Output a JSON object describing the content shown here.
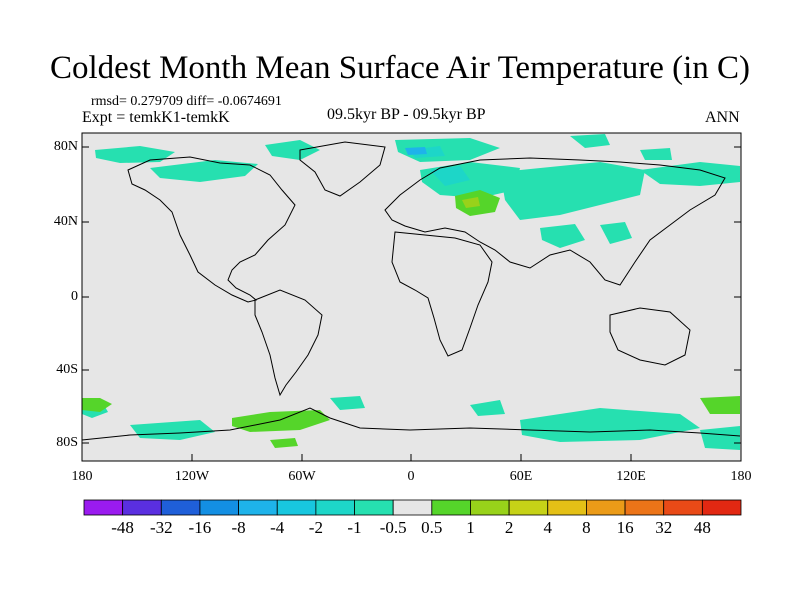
{
  "title": "Coldest Month Mean Surface Air Temperature (in C)",
  "stats": {
    "rmsd_line": "rmsd= 0.279709 diff= -0.0674691"
  },
  "experiment": "Expt = temkK1-temkK",
  "period": "09.5kyr BP - 09.5kyr BP",
  "season": "ANN",
  "axes": {
    "lat_labels": [
      "80N",
      "40N",
      "0",
      "40S",
      "80S"
    ],
    "lon_labels": [
      "180",
      "120W",
      "60W",
      "0",
      "60E",
      "120E",
      "180"
    ]
  },
  "colorbar": {
    "labels": [
      "-48",
      "-32",
      "-16",
      "-8",
      "-4",
      "-2",
      "-1",
      "-0.5",
      "0.5",
      "1",
      "2",
      "4",
      "8",
      "16",
      "32",
      "48"
    ],
    "colors": [
      "#9a1bef",
      "#5a2fe0",
      "#1f5fd9",
      "#138fe3",
      "#1eb3ea",
      "#18c7df",
      "#1dd6c8",
      "#26e0b0",
      "#e6e6e6",
      "#55d52a",
      "#98d21a",
      "#c6d217",
      "#e4c016",
      "#eb9b18",
      "#ec7418",
      "#e94a17",
      "#e22812"
    ]
  },
  "map_colors": {
    "background": "#e6e6e6",
    "cool_1": "#26e0b0",
    "cool_2": "#1dd6c8",
    "cool_3": "#1eb3ea",
    "warm_1": "#55d52a",
    "warm_2": "#98d21a"
  }
}
